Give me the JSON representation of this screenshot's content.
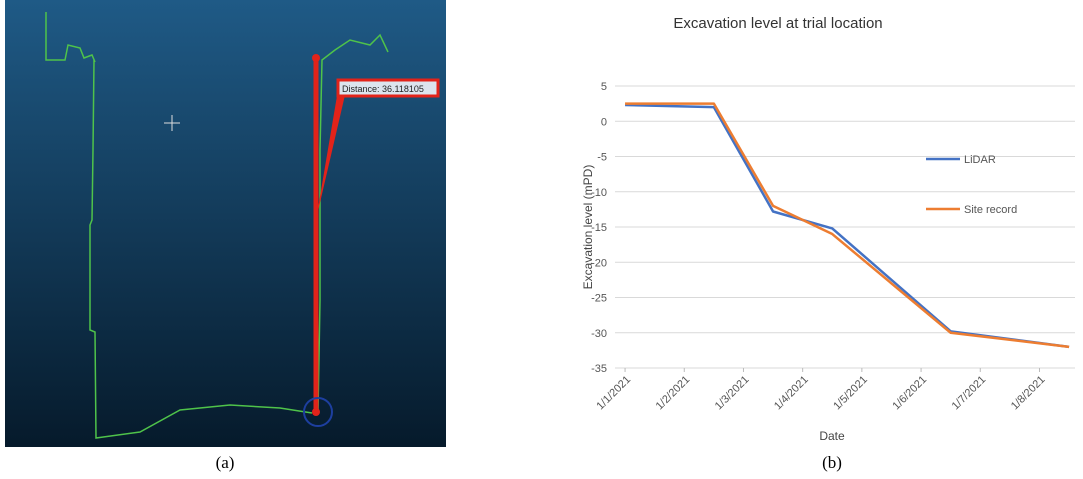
{
  "point_cloud": {
    "measurement_label": "Distance: 36.118105",
    "caption": "(a)"
  },
  "chart_data": {
    "type": "line",
    "title": "Excavation level at trial location",
    "caption": "(b)",
    "x_label": "Date",
    "y_label": "Excavation level (mPD)",
    "x": [
      0,
      1.5,
      2.5,
      3.5,
      5.5,
      7.5
    ],
    "xlim": [
      -0.17,
      7.6
    ],
    "xticks": [
      {
        "value": 0,
        "label": "1/1/2021"
      },
      {
        "value": 1,
        "label": "1/2/2021"
      },
      {
        "value": 2,
        "label": "1/3/2021"
      },
      {
        "value": 3,
        "label": "1/4/2021"
      },
      {
        "value": 4,
        "label": "1/5/2021"
      },
      {
        "value": 5,
        "label": "1/6/2021"
      },
      {
        "value": 6,
        "label": "1/7/2021"
      },
      {
        "value": 7,
        "label": "1/8/2021"
      }
    ],
    "ylim": [
      -35,
      5
    ],
    "yticks": [
      -35,
      -30,
      -25,
      -20,
      -15,
      -10,
      -5,
      0,
      5
    ],
    "grid": true,
    "legend": "right",
    "series": [
      {
        "name": "LiDAR",
        "color": "#4472c4",
        "values": [
          2.3,
          2.0,
          -12.8,
          -15.2,
          -29.8,
          -32.0
        ]
      },
      {
        "name": "Site record",
        "color": "#ed7d31",
        "values": [
          2.5,
          2.5,
          -12.0,
          -16.0,
          -30.0,
          -32.0
        ]
      }
    ]
  }
}
